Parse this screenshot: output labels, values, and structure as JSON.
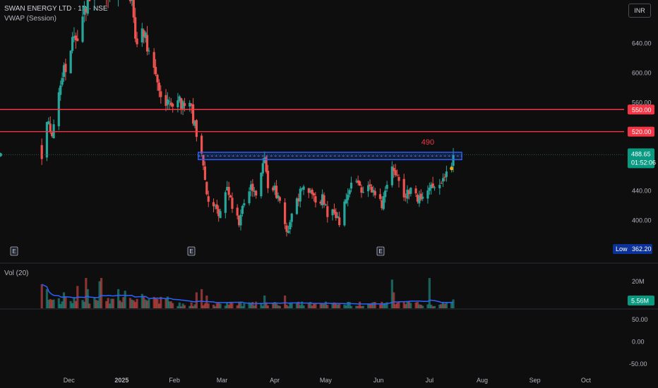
{
  "header": {
    "symbol_line": "SWAN ENERGY LTD · 1D · NSE",
    "indicator": "VWAP (Session)",
    "volume_label": "Vol (20)"
  },
  "toolbar": {
    "currency_button": "INR"
  },
  "colors": {
    "background": "#0e0e0e",
    "up": "#26a69a",
    "down": "#ef5350",
    "level_line": "#f23645",
    "zone_border": "#2962ff",
    "vwap_line": "#2962ff",
    "last_price_badge": "#089981",
    "low_badge": "#0c3299",
    "vwap_dot": "#f7a600"
  },
  "chart_data": [
    {
      "type": "candlestick",
      "instrument": "SWAN ENERGY LTD",
      "interval": "1D",
      "exchange": "NSE",
      "ylim": [
        355,
        690
      ],
      "y_ticks": [
        "640.00",
        "600.00",
        "560.00",
        "440.00",
        "400.00"
      ],
      "x_ticks": [
        "Dec",
        "2025",
        "Feb",
        "Mar",
        "Apr",
        "May",
        "Jun",
        "Jul",
        "Aug",
        "Sep",
        "Oct"
      ],
      "horizontal_levels": [
        {
          "value": 550,
          "label": "550.00"
        },
        {
          "value": 520,
          "label": "520.00"
        }
      ],
      "zone": {
        "low": 482,
        "high": 492,
        "label": "490"
      },
      "last_price": {
        "value": "488.65",
        "countdown": "01:52:06"
      },
      "low_marker": {
        "label": "Low",
        "value": "362.20"
      },
      "earnings_markers": [
        "E",
        "E",
        "E"
      ],
      "anchor_close": 500,
      "path": [
        {
          "d": "2024-11-15",
          "c": 490
        },
        {
          "d": "2024-11-18",
          "c": 540
        },
        {
          "d": "2024-11-21",
          "c": 510
        },
        {
          "d": "2024-11-25",
          "c": 580
        },
        {
          "d": "2024-11-28",
          "c": 600
        },
        {
          "d": "2024-12-02",
          "c": 640
        },
        {
          "d": "2024-12-06",
          "c": 650
        },
        {
          "d": "2024-12-10",
          "c": 680
        },
        {
          "d": "2024-12-16",
          "c": 720
        },
        {
          "d": "2024-12-20",
          "c": 740
        },
        {
          "d": "2024-12-24",
          "c": 700
        },
        {
          "d": "2024-12-31",
          "c": 730
        },
        {
          "d": "2025-01-03",
          "c": 760
        },
        {
          "d": "2025-01-07",
          "c": 690
        },
        {
          "d": "2025-01-10",
          "c": 640
        },
        {
          "d": "2025-01-14",
          "c": 660
        },
        {
          "d": "2025-01-17",
          "c": 620
        },
        {
          "d": "2025-01-21",
          "c": 600
        },
        {
          "d": "2025-01-24",
          "c": 570
        },
        {
          "d": "2025-01-28",
          "c": 560
        },
        {
          "d": "2025-01-31",
          "c": 550
        },
        {
          "d": "2025-02-04",
          "c": 560
        },
        {
          "d": "2025-02-07",
          "c": 555
        },
        {
          "d": "2025-02-11",
          "c": 550
        },
        {
          "d": "2025-02-14",
          "c": 520
        },
        {
          "d": "2025-02-17",
          "c": 485
        },
        {
          "d": "2025-02-20",
          "c": 430
        },
        {
          "d": "2025-02-24",
          "c": 420
        },
        {
          "d": "2025-02-28",
          "c": 410
        },
        {
          "d": "2025-03-04",
          "c": 440
        },
        {
          "d": "2025-03-07",
          "c": 420
        },
        {
          "d": "2025-03-11",
          "c": 400
        },
        {
          "d": "2025-03-14",
          "c": 430
        },
        {
          "d": "2025-03-18",
          "c": 445
        },
        {
          "d": "2025-03-21",
          "c": 430
        },
        {
          "d": "2025-03-24",
          "c": 460
        },
        {
          "d": "2025-03-26",
          "c": 480
        },
        {
          "d": "2025-03-28",
          "c": 450
        },
        {
          "d": "2025-04-01",
          "c": 440
        },
        {
          "d": "2025-04-04",
          "c": 430
        },
        {
          "d": "2025-04-07",
          "c": 395
        },
        {
          "d": "2025-04-09",
          "c": 380
        },
        {
          "d": "2025-04-11",
          "c": 410
        },
        {
          "d": "2025-04-15",
          "c": 430
        },
        {
          "d": "2025-04-18",
          "c": 450
        },
        {
          "d": "2025-04-22",
          "c": 440
        },
        {
          "d": "2025-04-25",
          "c": 425
        },
        {
          "d": "2025-04-29",
          "c": 430
        },
        {
          "d": "2025-05-02",
          "c": 410
        },
        {
          "d": "2025-05-06",
          "c": 410
        },
        {
          "d": "2025-05-09",
          "c": 400
        },
        {
          "d": "2025-05-13",
          "c": 430
        },
        {
          "d": "2025-05-16",
          "c": 445
        },
        {
          "d": "2025-05-20",
          "c": 450
        },
        {
          "d": "2025-05-23",
          "c": 440
        },
        {
          "d": "2025-05-27",
          "c": 445
        },
        {
          "d": "2025-05-30",
          "c": 435
        },
        {
          "d": "2025-06-03",
          "c": 420
        },
        {
          "d": "2025-06-06",
          "c": 455
        },
        {
          "d": "2025-06-09",
          "c": 475
        },
        {
          "d": "2025-06-12",
          "c": 460
        },
        {
          "d": "2025-06-16",
          "c": 435
        },
        {
          "d": "2025-06-19",
          "c": 440
        },
        {
          "d": "2025-06-23",
          "c": 430
        },
        {
          "d": "2025-06-26",
          "c": 425
        },
        {
          "d": "2025-06-30",
          "c": 440
        },
        {
          "d": "2025-07-03",
          "c": 450
        },
        {
          "d": "2025-07-07",
          "c": 445
        },
        {
          "d": "2025-07-10",
          "c": 455
        },
        {
          "d": "2025-07-14",
          "c": 470
        },
        {
          "d": "2025-07-15",
          "c": 488.65
        }
      ]
    },
    {
      "type": "bar",
      "name": "Vol (20)",
      "ylim": [
        0,
        27000000
      ],
      "y_ticks": [
        "20M"
      ],
      "last_value": "5.56M",
      "spikes": [
        {
          "d": "2024-11-15",
          "v": 15000000
        },
        {
          "d": "2024-11-18",
          "v": 12000000
        },
        {
          "d": "2024-11-28",
          "v": 10000000
        },
        {
          "d": "2024-12-06",
          "v": 14000000
        },
        {
          "d": "2024-12-11",
          "v": 19000000
        },
        {
          "d": "2024-12-12",
          "v": 12000000
        },
        {
          "d": "2024-12-19",
          "v": 17000000
        },
        {
          "d": "2024-12-20",
          "v": 19000000
        },
        {
          "d": "2024-12-30",
          "v": 12000000
        },
        {
          "d": "2025-01-03",
          "v": 11000000
        },
        {
          "d": "2025-01-13",
          "v": 9000000
        },
        {
          "d": "2025-02-14",
          "v": 10000000
        },
        {
          "d": "2025-02-17",
          "v": 12000000
        },
        {
          "d": "2025-02-20",
          "v": 8000000
        },
        {
          "d": "2025-03-26",
          "v": 8000000
        },
        {
          "d": "2025-04-07",
          "v": 8000000
        },
        {
          "d": "2025-06-09",
          "v": 18000000
        },
        {
          "d": "2025-06-10",
          "v": 10000000
        },
        {
          "d": "2025-07-01",
          "v": 19000000
        },
        {
          "d": "2025-07-15",
          "v": 5560000
        }
      ]
    },
    {
      "type": "line",
      "name": "oscillator",
      "ylim": [
        -60,
        60
      ],
      "y_ticks": [
        "50.00",
        "0.00",
        "-50.00"
      ]
    }
  ]
}
